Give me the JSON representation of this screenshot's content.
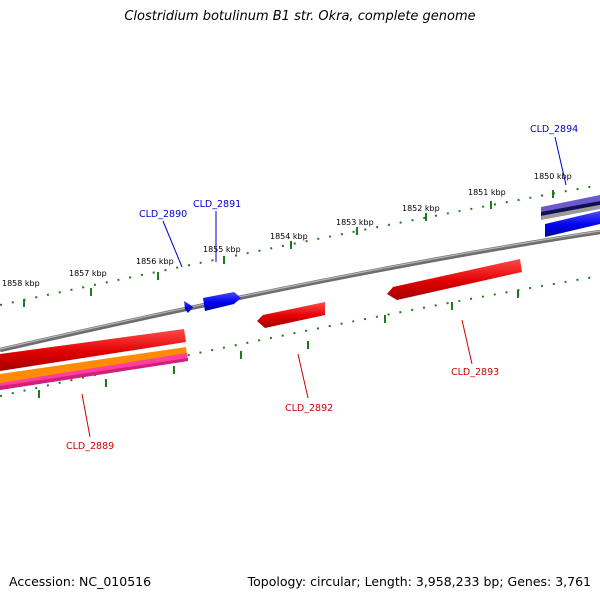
{
  "title": "Clostridium botulinum B1 str. Okra, complete genome",
  "footer": {
    "accession": "Accession: NC_010516",
    "summary": "Topology: circular; Length: 3,958,233 bp; Genes: 3,761"
  },
  "colors": {
    "backbone": "#888888",
    "plus_strand_gene": "#0000ee",
    "minus_strand_gene": "#ee0000",
    "label_plus": "#0000cc",
    "label_minus": "#cc0000",
    "ticks": "#1e7a1e",
    "orange_feature": "#ff8c00",
    "magenta_feature": "#ff3fa0",
    "purple_feature": "#6a5acd"
  },
  "kbp_ticks": [
    "1850 kbp",
    "1851 kbp",
    "1852 kbp",
    "1853 kbp",
    "1854 kbp",
    "1855 kbp",
    "1856 kbp",
    "1857 kbp",
    "1858 kbp"
  ],
  "genes": [
    {
      "name": "CLD_2889",
      "strand": "minus"
    },
    {
      "name": "CLD_2890",
      "strand": "plus"
    },
    {
      "name": "CLD_2891",
      "strand": "plus"
    },
    {
      "name": "CLD_2892",
      "strand": "minus"
    },
    {
      "name": "CLD_2893",
      "strand": "minus"
    },
    {
      "name": "CLD_2894",
      "strand": "plus"
    }
  ]
}
